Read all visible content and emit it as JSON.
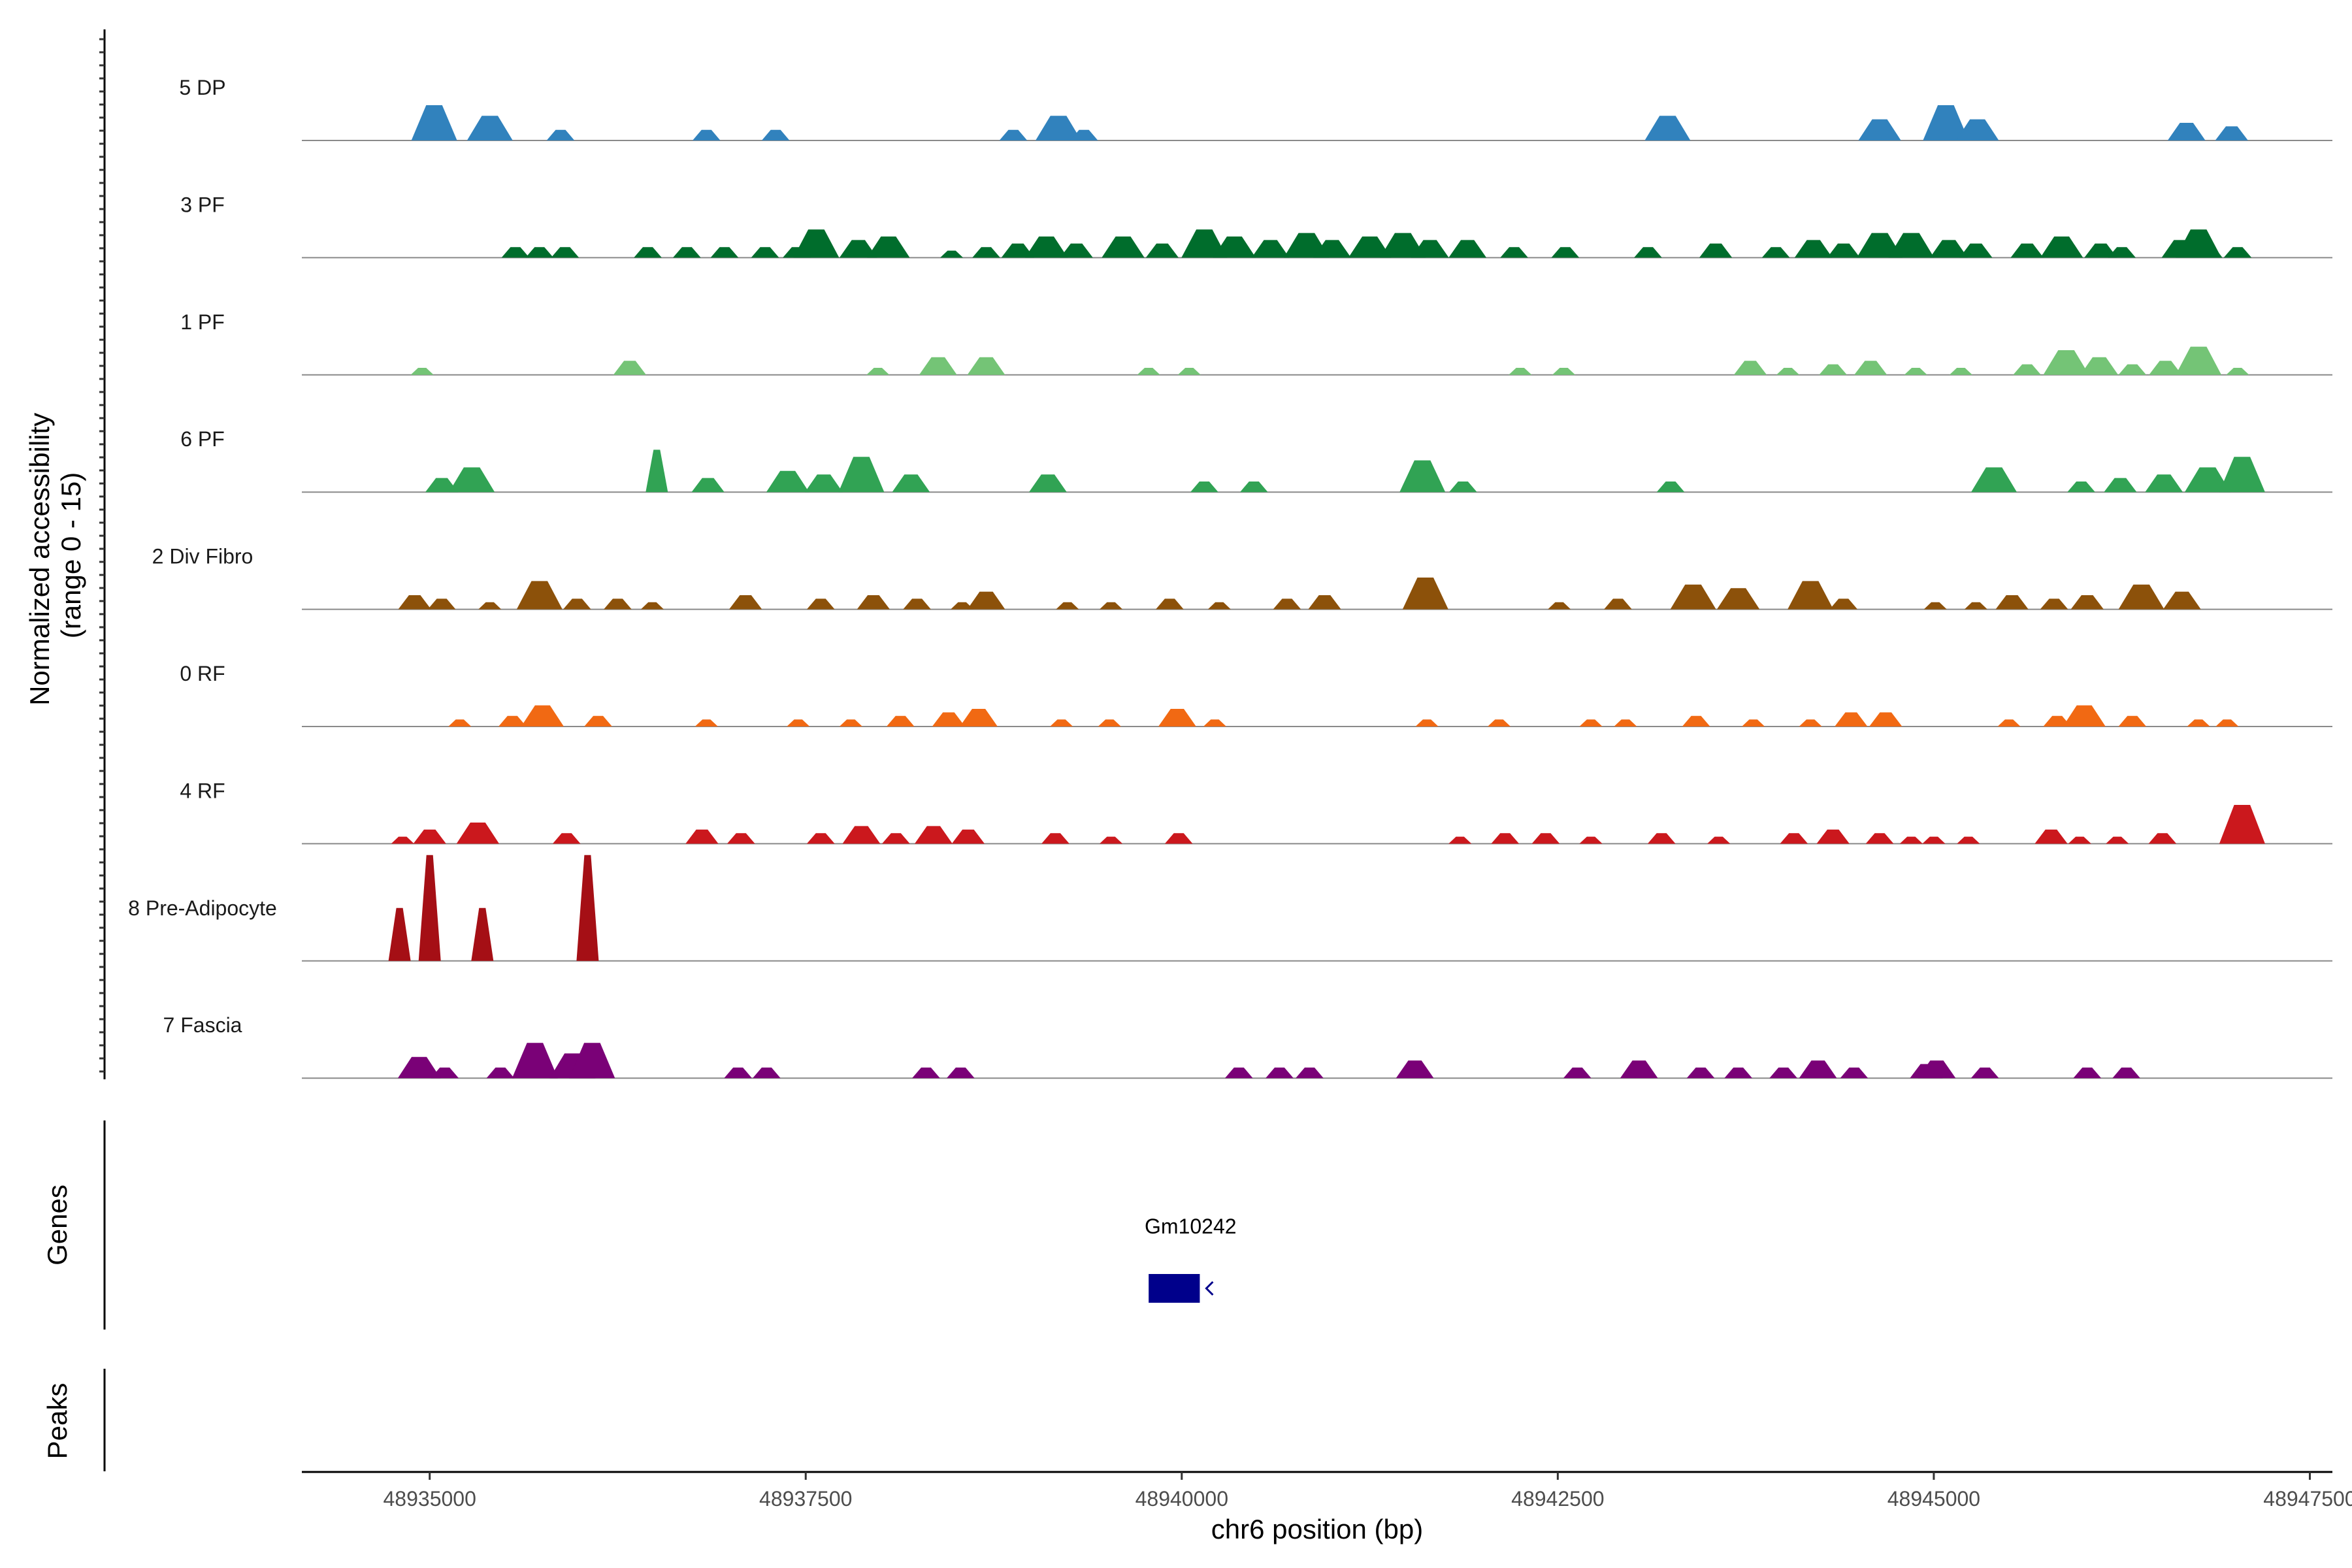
{
  "chart_data": {
    "type": "area",
    "title": "",
    "xlabel": "chr6 position (bp)",
    "ylabel_line1": "Normalized accessibility",
    "ylabel_line2": "(range 0 - 15)",
    "xlim": [
      48934150,
      48947650
    ],
    "x_ticks": [
      48935000,
      48937500,
      48940000,
      48942500,
      48945000,
      48947500
    ],
    "x_tick_labels": [
      "48935000",
      "48937500",
      "48940000",
      "48942500",
      "48945000",
      "48947500"
    ],
    "ylim": [
      0,
      15
    ],
    "tracks": [
      {
        "name": "5 DP",
        "color": "#3182bd",
        "peaks": [
          [
            48935030,
            5
          ],
          [
            48935400,
            3.5
          ],
          [
            48935870,
            1.5
          ],
          [
            48936840,
            1.5
          ],
          [
            48937300,
            1.5
          ],
          [
            48938880,
            1.5
          ],
          [
            48939180,
            3.5
          ],
          [
            48939350,
            1.5
          ],
          [
            48943230,
            3.5
          ],
          [
            48944640,
            3
          ],
          [
            48945080,
            5
          ],
          [
            48945290,
            3
          ],
          [
            48946680,
            2.5
          ],
          [
            48946980,
            2
          ]
        ]
      },
      {
        "name": "3 PF",
        "color": "#006d2c",
        "peaks": [
          [
            48935570,
            1.5
          ],
          [
            48935730,
            1.5
          ],
          [
            48935900,
            1.5
          ],
          [
            48936450,
            1.5
          ],
          [
            48936710,
            1.5
          ],
          [
            48936960,
            1.5
          ],
          [
            48937230,
            1.5
          ],
          [
            48937440,
            1.5
          ],
          [
            48937570,
            4
          ],
          [
            48937850,
            2.5
          ],
          [
            48938050,
            3
          ],
          [
            48938470,
            1
          ],
          [
            48938700,
            1.5
          ],
          [
            48938910,
            2
          ],
          [
            48939100,
            3
          ],
          [
            48939300,
            2
          ],
          [
            48939610,
            3
          ],
          [
            48939870,
            2
          ],
          [
            48940150,
            4
          ],
          [
            48940350,
            3
          ],
          [
            48940590,
            2.5
          ],
          [
            48940830,
            3.5
          ],
          [
            48941000,
            2.5
          ],
          [
            48941250,
            3
          ],
          [
            48941470,
            3.5
          ],
          [
            48941650,
            2.5
          ],
          [
            48941900,
            2.5
          ],
          [
            48942210,
            1.5
          ],
          [
            48942550,
            1.5
          ],
          [
            48943100,
            1.5
          ],
          [
            48943550,
            2
          ],
          [
            48943950,
            1.5
          ],
          [
            48944200,
            2.5
          ],
          [
            48944400,
            2
          ],
          [
            48944640,
            3.5
          ],
          [
            48944850,
            3.5
          ],
          [
            48945100,
            2.5
          ],
          [
            48945280,
            2
          ],
          [
            48945620,
            2
          ],
          [
            48945850,
            3
          ],
          [
            48946110,
            2
          ],
          [
            48946250,
            1.5
          ],
          [
            48946640,
            2.5
          ],
          [
            48946810,
            2
          ],
          [
            48946760,
            4
          ],
          [
            48947020,
            1.5
          ]
        ]
      },
      {
        "name": "1 PF",
        "color": "#74c476",
        "peaks": [
          [
            48934950,
            1
          ],
          [
            48936330,
            2
          ],
          [
            48937980,
            1
          ],
          [
            48938380,
            2.5
          ],
          [
            48938700,
            2.5
          ],
          [
            48939780,
            1
          ],
          [
            48940050,
            1
          ],
          [
            48942250,
            1
          ],
          [
            48942540,
            1
          ],
          [
            48943780,
            2
          ],
          [
            48944030,
            1
          ],
          [
            48944330,
            1.5
          ],
          [
            48944580,
            2
          ],
          [
            48944880,
            1
          ],
          [
            48945180,
            1
          ],
          [
            48945620,
            1.5
          ],
          [
            48945880,
            3.5
          ],
          [
            48946100,
            2.5
          ],
          [
            48946320,
            1.5
          ],
          [
            48946540,
            2
          ],
          [
            48946760,
            4
          ],
          [
            48947020,
            1
          ]
        ]
      },
      {
        "name": "6 PF",
        "color": "#31a354",
        "peaks": [
          [
            48935080,
            2
          ],
          [
            48935280,
            3.5
          ],
          [
            48936510,
            6
          ],
          [
            48936850,
            2
          ],
          [
            48937380,
            3
          ],
          [
            48937620,
            2.5
          ],
          [
            48937870,
            5
          ],
          [
            48938200,
            2.5
          ],
          [
            48939110,
            2.5
          ],
          [
            48940150,
            1.5
          ],
          [
            48940480,
            1.5
          ],
          [
            48941600,
            4.5
          ],
          [
            48941870,
            1.5
          ],
          [
            48943250,
            1.5
          ],
          [
            48945400,
            3.5
          ],
          [
            48945980,
            1.5
          ],
          [
            48946240,
            2
          ],
          [
            48946530,
            2.5
          ],
          [
            48946820,
            3.5
          ],
          [
            48947050,
            5
          ]
        ]
      },
      {
        "name": "2 Div Fibro",
        "color": "#8c510a",
        "peaks": [
          [
            48934900,
            2
          ],
          [
            48935080,
            1.5
          ],
          [
            48935400,
            1
          ],
          [
            48935730,
            4
          ],
          [
            48935980,
            1.5
          ],
          [
            48936250,
            1.5
          ],
          [
            48936480,
            1
          ],
          [
            48937100,
            2
          ],
          [
            48937600,
            1.5
          ],
          [
            48937950,
            2
          ],
          [
            48938240,
            1.5
          ],
          [
            48938540,
            1
          ],
          [
            48938700,
            2.5
          ],
          [
            48939240,
            1
          ],
          [
            48939530,
            1
          ],
          [
            48939920,
            1.5
          ],
          [
            48940250,
            1
          ],
          [
            48940700,
            1.5
          ],
          [
            48940950,
            2
          ],
          [
            48941620,
            4.5
          ],
          [
            48942510,
            1
          ],
          [
            48942900,
            1.5
          ],
          [
            48943400,
            3.5
          ],
          [
            48943700,
            3
          ],
          [
            48944180,
            4
          ],
          [
            48944400,
            1.5
          ],
          [
            48945010,
            1
          ],
          [
            48945280,
            1
          ],
          [
            48945520,
            2
          ],
          [
            48945800,
            1.5
          ],
          [
            48946020,
            2
          ],
          [
            48946380,
            3.5
          ],
          [
            48946650,
            2.5
          ]
        ]
      },
      {
        "name": "0 RF",
        "color": "#f16913",
        "peaks": [
          [
            48935200,
            1
          ],
          [
            48935550,
            1.5
          ],
          [
            48935750,
            3
          ],
          [
            48936120,
            1.5
          ],
          [
            48936840,
            1
          ],
          [
            48937450,
            1
          ],
          [
            48937800,
            1
          ],
          [
            48938130,
            1.5
          ],
          [
            48938450,
            2
          ],
          [
            48938650,
            2.5
          ],
          [
            48939200,
            1
          ],
          [
            48939520,
            1
          ],
          [
            48939970,
            2.5
          ],
          [
            48940220,
            1
          ],
          [
            48941630,
            1
          ],
          [
            48942110,
            1
          ],
          [
            48942720,
            1
          ],
          [
            48942950,
            1
          ],
          [
            48943420,
            1.5
          ],
          [
            48943800,
            1
          ],
          [
            48944180,
            1
          ],
          [
            48944450,
            2
          ],
          [
            48944680,
            2
          ],
          [
            48945500,
            1
          ],
          [
            48945820,
            1.5
          ],
          [
            48946000,
            3
          ],
          [
            48946320,
            1.5
          ],
          [
            48946760,
            1
          ],
          [
            48946950,
            1
          ]
        ]
      },
      {
        "name": "4 RF",
        "color": "#cb181d",
        "peaks": [
          [
            48934820,
            1
          ],
          [
            48935000,
            2
          ],
          [
            48935320,
            3
          ],
          [
            48935910,
            1.5
          ],
          [
            48936810,
            2
          ],
          [
            48937070,
            1.5
          ],
          [
            48937600,
            1.5
          ],
          [
            48937870,
            2.5
          ],
          [
            48938100,
            1.5
          ],
          [
            48938350,
            2.5
          ],
          [
            48938580,
            2
          ],
          [
            48939160,
            1.5
          ],
          [
            48939530,
            1
          ],
          [
            48939980,
            1.5
          ],
          [
            48941850,
            1
          ],
          [
            48942150,
            1.5
          ],
          [
            48942420,
            1.5
          ],
          [
            48942720,
            1
          ],
          [
            48943190,
            1.5
          ],
          [
            48943570,
            1
          ],
          [
            48944070,
            1.5
          ],
          [
            48944330,
            2
          ],
          [
            48944640,
            1.5
          ],
          [
            48944850,
            1
          ],
          [
            48945000,
            1
          ],
          [
            48945230,
            1
          ],
          [
            48945780,
            2
          ],
          [
            48945970,
            1
          ],
          [
            48946220,
            1
          ],
          [
            48946520,
            1.5
          ],
          [
            48947050,
            5.5
          ]
        ]
      },
      {
        "name": "8 Pre-Adipocyte",
        "color": "#a50f15",
        "peaks": [
          [
            48934800,
            7.5
          ],
          [
            48935000,
            15
          ],
          [
            48935350,
            7.5
          ],
          [
            48936050,
            15
          ]
        ]
      },
      {
        "name": "7 Fascia",
        "color": "#7a0177",
        "peaks": [
          [
            48934930,
            3
          ],
          [
            48935100,
            1.5
          ],
          [
            48935470,
            1.5
          ],
          [
            48935700,
            5
          ],
          [
            48935950,
            3.5
          ],
          [
            48936080,
            5
          ],
          [
            48937050,
            1.5
          ],
          [
            48937240,
            1.5
          ],
          [
            48938300,
            1.5
          ],
          [
            48938530,
            1.5
          ],
          [
            48940380,
            1.5
          ],
          [
            48940650,
            1.5
          ],
          [
            48940850,
            1.5
          ],
          [
            48941550,
            2.5
          ],
          [
            48942630,
            1.5
          ],
          [
            48943040,
            2.5
          ],
          [
            48943450,
            1.5
          ],
          [
            48943700,
            1.5
          ],
          [
            48944000,
            1.5
          ],
          [
            48944230,
            2.5
          ],
          [
            48944470,
            1.5
          ],
          [
            48944950,
            2
          ],
          [
            48945020,
            2.5
          ],
          [
            48945340,
            1.5
          ],
          [
            48946020,
            1.5
          ],
          [
            48946280,
            1.5
          ]
        ]
      }
    ],
    "genes_track_label": "Genes",
    "peaks_track_label": "Peaks",
    "genes": [
      {
        "name": "Gm10242",
        "start": 48939780,
        "end": 48940120,
        "strand": "-",
        "color": "#00008b"
      }
    ]
  }
}
